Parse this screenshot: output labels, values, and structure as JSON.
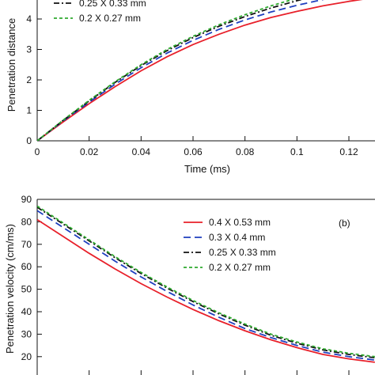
{
  "chart_data": [
    {
      "type": "line",
      "panel": "a",
      "xlabel": "Time (ms)",
      "ylabel": "Penetration distance",
      "xlim": [
        0,
        0.13
      ],
      "ylim": [
        0,
        5
      ],
      "xticks": [
        0,
        0.02,
        0.04,
        0.06,
        0.08,
        0.1,
        0.12
      ],
      "xtick_labels": [
        "0",
        "0.02",
        "0.04",
        "0.06",
        "0.08",
        "0.1",
        "0.12"
      ],
      "yticks": [
        0,
        1,
        2,
        3,
        4
      ],
      "ytick_labels": [
        "0",
        "1",
        "2",
        "3",
        "4"
      ],
      "grid": false,
      "legend_position": "top-left",
      "series": [
        {
          "name": "0.4 X 0.53 mm",
          "color": "#e8202a",
          "dash": "solid",
          "x": [
            0,
            0.01,
            0.02,
            0.03,
            0.04,
            0.05,
            0.06,
            0.07,
            0.08,
            0.09,
            0.1,
            0.11,
            0.12,
            0.128
          ],
          "y": [
            0,
            0.62,
            1.22,
            1.78,
            2.3,
            2.76,
            3.16,
            3.5,
            3.8,
            4.05,
            4.25,
            4.43,
            4.58,
            4.68
          ]
        },
        {
          "name": "0.3 X 0.4 mm",
          "color": "#1f3fbf",
          "dash": "long-dash",
          "x": [
            0,
            0.01,
            0.02,
            0.03,
            0.04,
            0.05,
            0.06,
            0.07,
            0.08,
            0.09,
            0.1,
            0.11,
            0.12
          ],
          "y": [
            0,
            0.65,
            1.27,
            1.86,
            2.4,
            2.88,
            3.3,
            3.66,
            3.97,
            4.23,
            4.45,
            4.64,
            4.8
          ]
        },
        {
          "name": "0.25 X 0.33 mm",
          "color": "#111111",
          "dash": "dash-dot",
          "x": [
            0,
            0.01,
            0.02,
            0.03,
            0.04,
            0.05,
            0.06,
            0.07,
            0.08,
            0.09,
            0.1,
            0.11
          ],
          "y": [
            0,
            0.67,
            1.31,
            1.92,
            2.47,
            2.96,
            3.39,
            3.76,
            4.08,
            4.36,
            4.6,
            4.82
          ]
        },
        {
          "name": "0.2 X 0.27 mm",
          "color": "#2eaa2e",
          "dash": "short-dash",
          "x": [
            0,
            0.01,
            0.02,
            0.03,
            0.04,
            0.05,
            0.06,
            0.07,
            0.08,
            0.09,
            0.1,
            0.108
          ],
          "y": [
            0,
            0.68,
            1.33,
            1.94,
            2.5,
            3.0,
            3.43,
            3.81,
            4.14,
            4.43,
            4.68,
            4.86
          ]
        }
      ]
    },
    {
      "type": "line",
      "panel": "b",
      "panel_tag": "(b)",
      "ylabel": "Penetration velocity (cm/ms)",
      "xlim": [
        0,
        0.13
      ],
      "ylim": [
        16,
        90
      ],
      "yticks": [
        20,
        30,
        40,
        50,
        60,
        70,
        80,
        90
      ],
      "ytick_labels": [
        "20",
        "30",
        "40",
        "50",
        "60",
        "70",
        "80",
        "90"
      ],
      "grid": false,
      "legend_position": "top-right",
      "series": [
        {
          "name": "0.4 X 0.53 mm",
          "color": "#e8202a",
          "dash": "solid",
          "x": [
            0,
            0.01,
            0.02,
            0.03,
            0.04,
            0.05,
            0.06,
            0.07,
            0.08,
            0.09,
            0.1,
            0.11,
            0.12,
            0.13
          ],
          "y": [
            81,
            73.5,
            66,
            59,
            52.5,
            46.5,
            41,
            36,
            31.5,
            27.5,
            24,
            21,
            19,
            17.5
          ]
        },
        {
          "name": "0.3 X 0.4 mm",
          "color": "#1f3fbf",
          "dash": "long-dash",
          "x": [
            0,
            0.01,
            0.02,
            0.03,
            0.04,
            0.05,
            0.06,
            0.07,
            0.08,
            0.09,
            0.1,
            0.11,
            0.12,
            0.13
          ],
          "y": [
            85,
            77.5,
            70,
            62.5,
            55.5,
            49,
            43,
            37.5,
            32.5,
            28.5,
            25,
            22,
            20,
            18.5
          ]
        },
        {
          "name": "0.25 X 0.33 mm",
          "color": "#111111",
          "dash": "dash-dot",
          "x": [
            0,
            0.01,
            0.02,
            0.03,
            0.04,
            0.05,
            0.06,
            0.07,
            0.08,
            0.09,
            0.1,
            0.11,
            0.12,
            0.13
          ],
          "y": [
            86.5,
            79,
            71.5,
            64,
            57,
            50.5,
            44.5,
            39,
            34,
            29.5,
            26,
            23,
            21,
            19.5
          ]
        },
        {
          "name": "0.2 X 0.27 mm",
          "color": "#2eaa2e",
          "dash": "short-dash",
          "x": [
            0,
            0.01,
            0.02,
            0.03,
            0.04,
            0.05,
            0.06,
            0.07,
            0.08,
            0.09,
            0.1,
            0.11,
            0.12,
            0.13
          ],
          "y": [
            87,
            79.5,
            72,
            64.5,
            57.5,
            51,
            45,
            39.5,
            34.5,
            30,
            26.5,
            23.5,
            21.5,
            20
          ]
        }
      ]
    }
  ]
}
